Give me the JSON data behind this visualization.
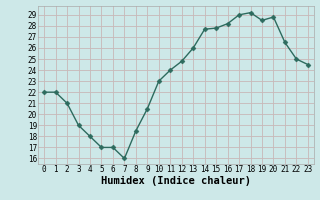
{
  "x": [
    0,
    1,
    2,
    3,
    4,
    5,
    6,
    7,
    8,
    9,
    10,
    11,
    12,
    13,
    14,
    15,
    16,
    17,
    18,
    19,
    20,
    21,
    22,
    23
  ],
  "y": [
    22,
    22,
    21,
    19,
    18,
    17,
    17,
    16,
    18.5,
    20.5,
    23,
    24,
    24.8,
    26,
    27.7,
    27.8,
    28.2,
    29,
    29.2,
    28.5,
    28.8,
    26.5,
    25,
    24.5
  ],
  "line_color": "#2d6b5e",
  "marker_color": "#2d6b5e",
  "bg_color": "#cde8e8",
  "grid_color": "#c8b8b8",
  "xlabel": "Humidex (Indice chaleur)",
  "ylim": [
    15.5,
    29.8
  ],
  "xlim": [
    -0.5,
    23.5
  ],
  "yticks": [
    16,
    17,
    18,
    19,
    20,
    21,
    22,
    23,
    24,
    25,
    26,
    27,
    28,
    29
  ],
  "xticks": [
    0,
    1,
    2,
    3,
    4,
    5,
    6,
    7,
    8,
    9,
    10,
    11,
    12,
    13,
    14,
    15,
    16,
    17,
    18,
    19,
    20,
    21,
    22,
    23
  ],
  "tick_label_fontsize": 5.5,
  "xlabel_fontsize": 7.5,
  "linewidth": 1.0,
  "markersize": 2.5
}
